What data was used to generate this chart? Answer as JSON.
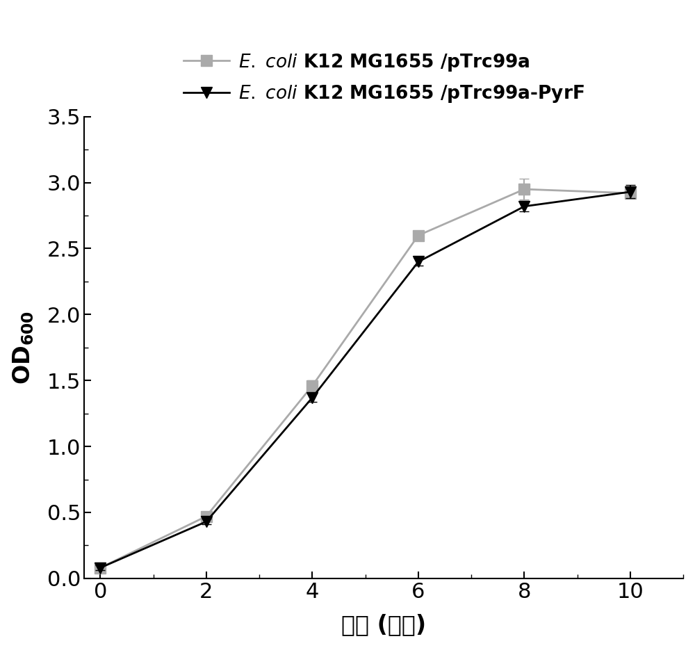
{
  "x": [
    0,
    2,
    4,
    6,
    8,
    10
  ],
  "series1_y": [
    0.08,
    0.47,
    1.46,
    2.6,
    2.95,
    2.92
  ],
  "series1_yerr": [
    0.02,
    0.02,
    0.04,
    0.03,
    0.08,
    0.04
  ],
  "series1_color": "#aaaaaa",
  "series1_label_rest": " K12 MG1655 /pTrc99a",
  "series1_marker": "s",
  "series2_y": [
    0.08,
    0.43,
    1.37,
    2.4,
    2.82,
    2.93
  ],
  "series2_yerr": [
    0.02,
    0.02,
    0.03,
    0.03,
    0.04,
    0.05
  ],
  "series2_color": "#000000",
  "series2_label_rest": " K12 MG1655 /pTrc99a-PyrF",
  "series2_marker": "v",
  "xlabel": "时间 (小时)",
  "ylabel": "OD",
  "xlim": [
    -0.3,
    11
  ],
  "ylim": [
    0.0,
    3.5
  ],
  "xticks": [
    0,
    2,
    4,
    6,
    8,
    10
  ],
  "yticks": [
    0.0,
    0.5,
    1.0,
    1.5,
    2.0,
    2.5,
    3.0,
    3.5
  ],
  "xlabel_fontsize": 24,
  "ylabel_fontsize": 24,
  "tick_fontsize": 22,
  "legend_fontsize": 19,
  "linewidth": 2.0,
  "markersize": 11,
  "capsize": 5,
  "elinewidth": 1.5
}
